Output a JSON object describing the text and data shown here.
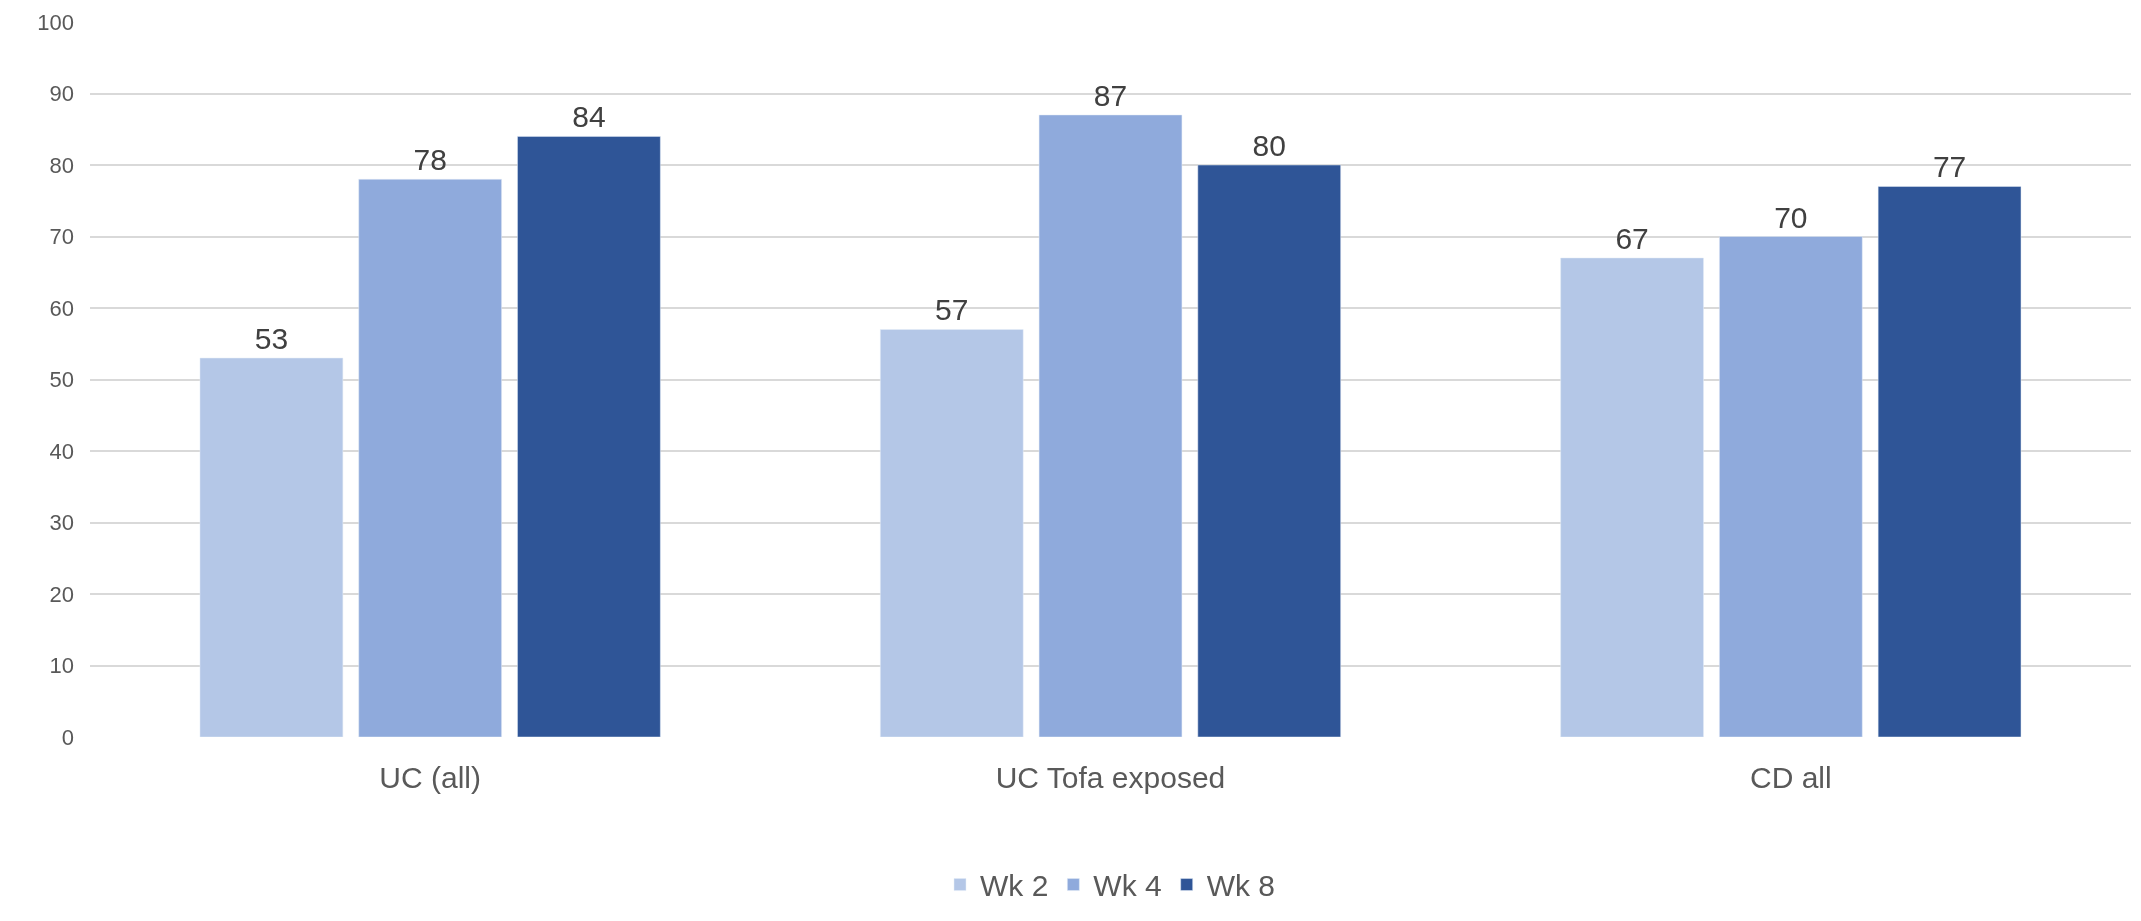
{
  "chart_data": {
    "type": "bar",
    "categories": [
      "UC (all)",
      "UC Tofa exposed",
      "CD all"
    ],
    "series": [
      {
        "name": "Wk 2",
        "color": "#b4c7e7",
        "values": [
          53,
          57,
          67
        ]
      },
      {
        "name": "Wk 4",
        "color": "#8faadc",
        "values": [
          78,
          87,
          70
        ]
      },
      {
        "name": "Wk 8",
        "color": "#2f5597",
        "values": [
          84,
          80,
          77
        ]
      }
    ],
    "ylim": [
      0,
      100
    ],
    "yticks": [
      0,
      10,
      20,
      30,
      40,
      50,
      60,
      70,
      80,
      90,
      100
    ],
    "grid": "y",
    "legend": "bottom",
    "data_labels": true
  }
}
